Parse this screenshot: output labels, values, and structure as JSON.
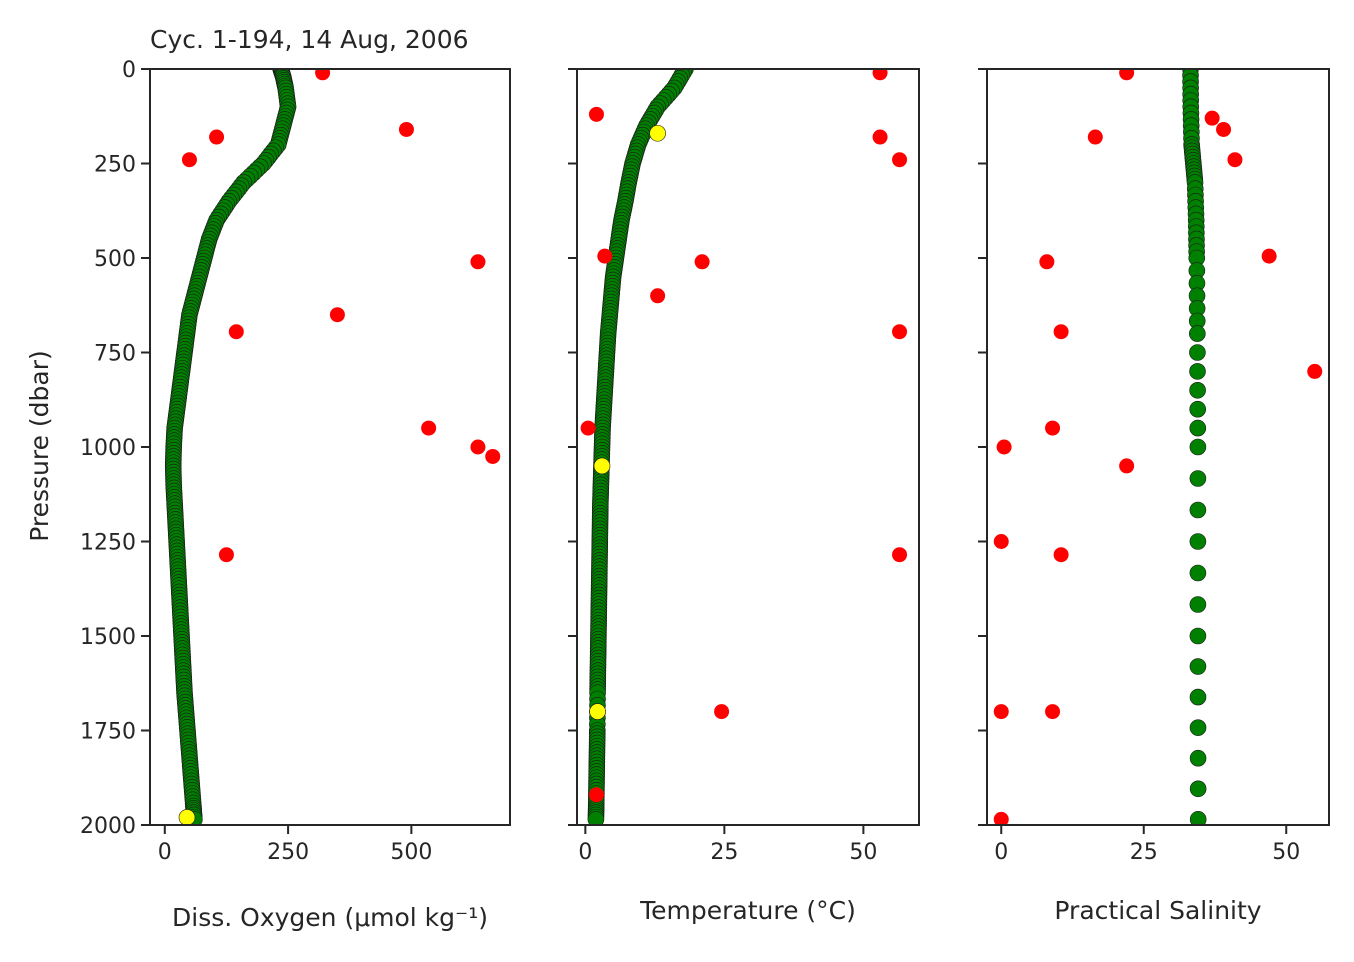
{
  "title": "Cyc. 1-194, 14 Aug, 2006",
  "ylabel": "Pressure (dbar)",
  "y_ticks": [
    "0",
    "250",
    "500",
    "750",
    "1000",
    "1250",
    "1500",
    "1750",
    "2000"
  ],
  "colors": {
    "good": "#008000",
    "probably_good": "#ffff00",
    "bad": "#ff0000",
    "axis": "#262626"
  },
  "chart_data": [
    {
      "type": "scatter",
      "xlabel": "Diss. Oxygen (μmol kg⁻¹)",
      "xlim": [
        -30,
        700
      ],
      "ylim": [
        2000,
        0
      ],
      "x_ticks": [
        0,
        250,
        500
      ],
      "x_tick_labels": [
        "0",
        "250",
        "500"
      ],
      "profile": [
        [
          235,
          0
        ],
        [
          240,
          20
        ],
        [
          245,
          50
        ],
        [
          250,
          100
        ],
        [
          240,
          150
        ],
        [
          230,
          200
        ],
        [
          200,
          250
        ],
        [
          160,
          300
        ],
        [
          130,
          350
        ],
        [
          105,
          400
        ],
        [
          90,
          450
        ],
        [
          80,
          500
        ],
        [
          70,
          550
        ],
        [
          60,
          600
        ],
        [
          50,
          650
        ],
        [
          45,
          700
        ],
        [
          40,
          750
        ],
        [
          35,
          800
        ],
        [
          30,
          850
        ],
        [
          25,
          900
        ],
        [
          20,
          950
        ],
        [
          18,
          1000
        ],
        [
          17,
          1050
        ],
        [
          18,
          1100
        ],
        [
          20,
          1150
        ],
        [
          22,
          1200
        ],
        [
          24,
          1250
        ],
        [
          26,
          1300
        ],
        [
          28,
          1350
        ],
        [
          30,
          1400
        ],
        [
          32,
          1450
        ],
        [
          34,
          1500
        ],
        [
          36,
          1550
        ],
        [
          38,
          1600
        ],
        [
          40,
          1650
        ],
        [
          43,
          1700
        ],
        [
          46,
          1750
        ],
        [
          49,
          1800
        ],
        [
          52,
          1850
        ],
        [
          55,
          1900
        ],
        [
          58,
          1950
        ],
        [
          60,
          1985
        ]
      ],
      "flagged_probably_good": [
        [
          45,
          1980
        ]
      ],
      "flagged_bad": [
        [
          320,
          10
        ],
        [
          490,
          160
        ],
        [
          105,
          180
        ],
        [
          50,
          240
        ],
        [
          635,
          510
        ],
        [
          350,
          650
        ],
        [
          145,
          695
        ],
        [
          535,
          950
        ],
        [
          635,
          1000
        ],
        [
          665,
          1025
        ],
        [
          125,
          1285
        ]
      ]
    },
    {
      "type": "scatter",
      "xlabel": "Temperature (°C)",
      "xlim": [
        -1.5,
        60
      ],
      "ylim": [
        2000,
        0
      ],
      "x_ticks": [
        0,
        25,
        50
      ],
      "x_tick_labels": [
        "0",
        "25",
        "50"
      ],
      "profile": [
        [
          18,
          0
        ],
        [
          16,
          50
        ],
        [
          13,
          100
        ],
        [
          11,
          150
        ],
        [
          9.5,
          200
        ],
        [
          8.5,
          250
        ],
        [
          7.8,
          300
        ],
        [
          7.2,
          350
        ],
        [
          6.5,
          400
        ],
        [
          6,
          450
        ],
        [
          5.5,
          500
        ],
        [
          5,
          550
        ],
        [
          4.7,
          600
        ],
        [
          4.4,
          650
        ],
        [
          4.1,
          700
        ],
        [
          3.9,
          750
        ],
        [
          3.7,
          800
        ],
        [
          3.5,
          850
        ],
        [
          3.3,
          900
        ],
        [
          3.1,
          950
        ],
        [
          3,
          1000
        ],
        [
          2.9,
          1050
        ],
        [
          2.8,
          1100
        ],
        [
          2.7,
          1150
        ],
        [
          2.65,
          1200
        ],
        [
          2.6,
          1250
        ],
        [
          2.55,
          1300
        ],
        [
          2.5,
          1350
        ],
        [
          2.45,
          1400
        ],
        [
          2.4,
          1450
        ],
        [
          2.35,
          1500
        ],
        [
          2.3,
          1550
        ],
        [
          2.25,
          1600
        ],
        [
          2.2,
          1650
        ],
        [
          2.15,
          1750
        ],
        [
          2.1,
          1800
        ],
        [
          2.05,
          1850
        ],
        [
          2,
          1900
        ],
        [
          1.95,
          1950
        ],
        [
          1.9,
          1985
        ]
      ],
      "flagged_probably_good": [
        [
          13,
          170
        ],
        [
          3,
          1050
        ],
        [
          2.2,
          1700
        ]
      ],
      "flagged_bad": [
        [
          53,
          10
        ],
        [
          2,
          120
        ],
        [
          53,
          180
        ],
        [
          56.5,
          240
        ],
        [
          3.5,
          495
        ],
        [
          21,
          510
        ],
        [
          13,
          600
        ],
        [
          56.5,
          695
        ],
        [
          0.5,
          950
        ],
        [
          56.5,
          1285
        ],
        [
          24.5,
          1700
        ],
        [
          2,
          1920
        ]
      ]
    },
    {
      "type": "scatter",
      "xlabel": "Practical Salinity",
      "xlim": [
        -2.5,
        57.5
      ],
      "ylim": [
        2000,
        0
      ],
      "x_ticks": [
        0,
        25,
        50
      ],
      "x_tick_labels": [
        "0",
        "25",
        "50"
      ],
      "profile": [
        [
          33.2,
          0
        ],
        [
          33.25,
          100
        ],
        [
          33.4,
          200
        ],
        [
          33.7,
          250
        ],
        [
          34,
          300
        ],
        [
          34.2,
          400
        ],
        [
          34.3,
          500
        ],
        [
          34.4,
          700
        ],
        [
          34.5,
          1000
        ],
        [
          34.5,
          1500
        ],
        [
          34.55,
          1985
        ]
      ],
      "flagged_probably_good": [],
      "flagged_bad": [
        [
          22,
          10
        ],
        [
          37,
          130
        ],
        [
          39,
          160
        ],
        [
          16.5,
          180
        ],
        [
          41,
          240
        ],
        [
          47,
          495
        ],
        [
          8,
          510
        ],
        [
          10.5,
          695
        ],
        [
          55,
          800
        ],
        [
          9,
          950
        ],
        [
          0.5,
          1000
        ],
        [
          22,
          1050
        ],
        [
          0,
          1250
        ],
        [
          10.5,
          1285
        ],
        [
          0,
          1700
        ],
        [
          9,
          1700
        ],
        [
          0,
          1985
        ]
      ]
    }
  ]
}
